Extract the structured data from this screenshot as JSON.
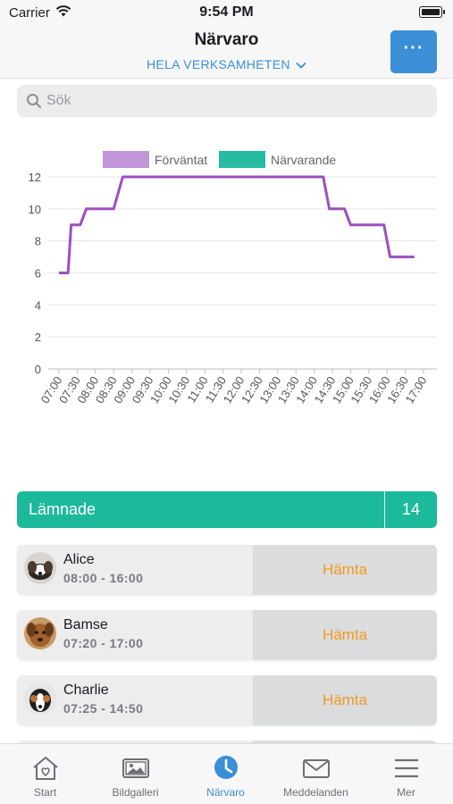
{
  "status_bar": {
    "carrier": "Carrier",
    "time": "9:54 PM"
  },
  "header": {
    "title": "Närvaro",
    "scope": "HELA VERKSAMHETEN",
    "more_label": "···"
  },
  "search": {
    "placeholder": "Sök",
    "value": ""
  },
  "chart_data": {
    "type": "line",
    "legend": [
      "Förväntat",
      "Närvarande"
    ],
    "x": [
      "07:00",
      "07:30",
      "08:00",
      "08:30",
      "09:00",
      "09:30",
      "10:00",
      "10:30",
      "11:00",
      "11:30",
      "12:00",
      "12:30",
      "13:00",
      "13:30",
      "14:00",
      "14:30",
      "15:00",
      "15:30",
      "16:00",
      "16:30",
      "17:00"
    ],
    "series": [
      {
        "name": "Förväntat",
        "color": "#9b4fc0",
        "points": [
          [
            "07:00",
            6
          ],
          [
            "07:15",
            6
          ],
          [
            "07:20",
            9
          ],
          [
            "07:35",
            9
          ],
          [
            "07:45",
            10
          ],
          [
            "08:30",
            10
          ],
          [
            "08:45",
            12
          ],
          [
            "14:15",
            12
          ],
          [
            "14:25",
            10
          ],
          [
            "14:50",
            10
          ],
          [
            "15:00",
            9
          ],
          [
            "15:55",
            9
          ],
          [
            "16:05",
            7
          ],
          [
            "16:45",
            7
          ]
        ]
      },
      {
        "name": "Närvarande",
        "color": "#1cb99a",
        "points": []
      }
    ],
    "ylim": [
      0,
      12
    ],
    "yticks": [
      0,
      2,
      4,
      6,
      8,
      10,
      12
    ],
    "grid": true,
    "legend_position": "top-center"
  },
  "section": {
    "label": "Lämnade",
    "count": "14"
  },
  "children": [
    {
      "name": "Alice",
      "hours": "08:00 - 16:00",
      "action": "Hämta"
    },
    {
      "name": "Bamse",
      "hours": "07:20 - 17:00",
      "action": "Hämta"
    },
    {
      "name": "Charlie",
      "hours": "07:25 - 14:50",
      "action": "Hämta"
    }
  ],
  "tabbar": {
    "active": "Närvaro",
    "tabs": [
      {
        "label": "Start",
        "icon": "home-heart-icon"
      },
      {
        "label": "Bildgalleri",
        "icon": "image-gallery-icon"
      },
      {
        "label": "Närvaro",
        "icon": "clock-icon"
      },
      {
        "label": "Meddelanden",
        "icon": "envelope-icon"
      },
      {
        "label": "Mer",
        "icon": "hamburger-menu-icon"
      }
    ]
  }
}
